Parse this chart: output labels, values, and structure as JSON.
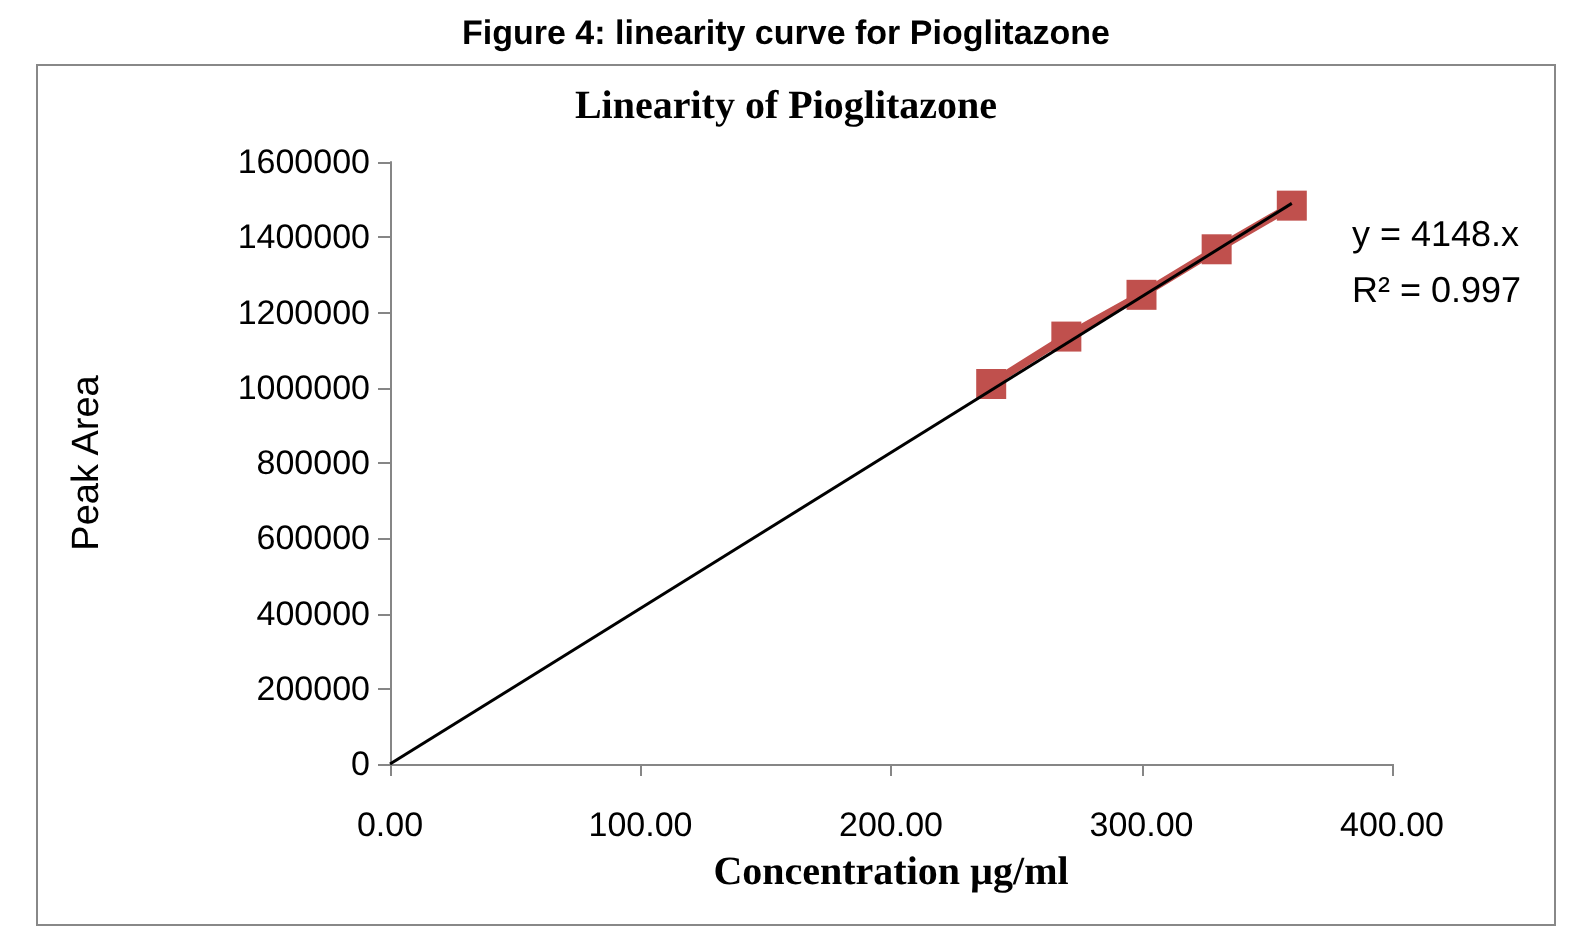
{
  "chart_data": {
    "type": "line",
    "title": "Linearity of Pioglitazone",
    "xlabel": "Concentration µg/ml",
    "ylabel": "Peak Area",
    "annotations": [
      "Figure 4: linearity curve for Pioglitazone",
      "y = 4148.x",
      "R² = 0.997"
    ],
    "x": [
      240,
      270,
      300,
      330,
      360
    ],
    "series": [
      {
        "color": "#c0504d",
        "values": [
          1010000,
          1136000,
          1247000,
          1368000,
          1484000
        ],
        "marker": "square"
      },
      {
        "type": "line",
        "color": "#000000",
        "x": [
          0,
          360
        ],
        "values": [
          0,
          1490000
        ],
        "marker": "none"
      }
    ],
    "xlim": [
      0,
      400
    ],
    "xticks": [
      {
        "value": 0,
        "label": "0.00"
      },
      {
        "value": 100,
        "label": "100.00"
      },
      {
        "value": 200,
        "label": "200.00"
      },
      {
        "value": 300,
        "label": "300.00"
      },
      {
        "value": 400,
        "label": "400.00"
      }
    ],
    "ylim": [
      0,
      1600000
    ],
    "yticks": [
      0,
      200000,
      400000,
      600000,
      800000,
      1000000,
      1200000,
      1400000,
      1600000
    ],
    "grid": false
  }
}
